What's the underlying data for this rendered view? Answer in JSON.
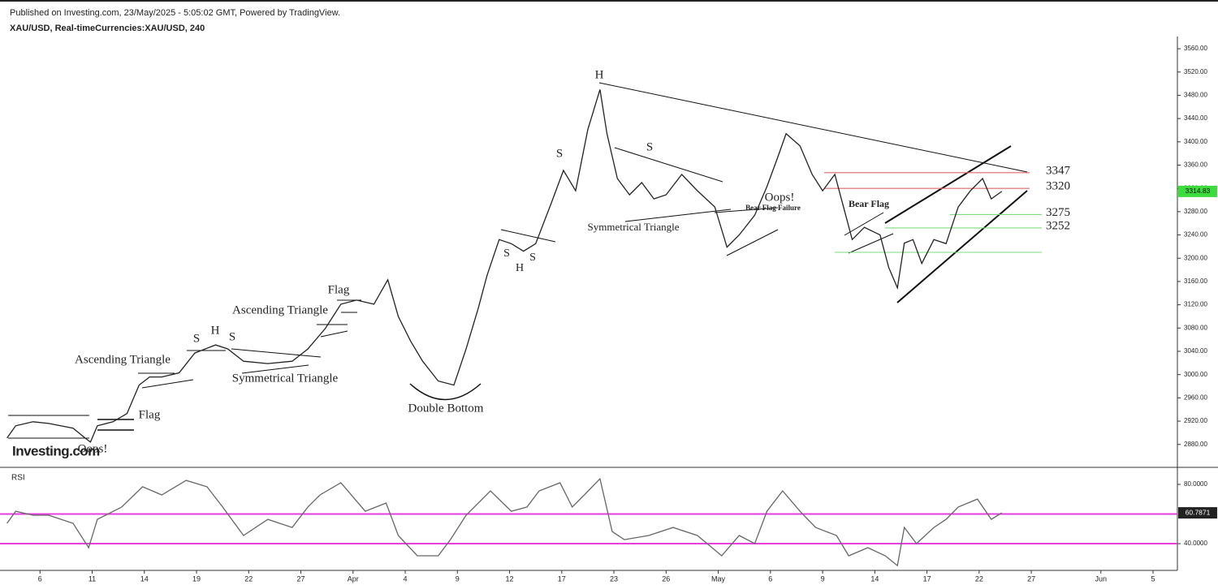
{
  "chart_data": [
    {
      "type": "line",
      "title": "Published on Investing.com, 23/May/2025 - 5:05:02 GMT, Powered by TradingView.",
      "subtitle": "XAU/USD, Real-timeCurrencies:XAU/USD, 240",
      "watermark": "Investing.com",
      "color": "#222222",
      "x": [
        -1.9,
        -1.4,
        -0.4,
        0.5,
        1.9,
        2.6,
        2.9,
        3.3,
        4.2,
        5.0,
        5.7,
        6.3,
        7.0,
        8.0,
        8.9,
        10.1,
        10.8,
        11.7,
        13.1,
        14.5,
        15.4,
        16.4,
        17.3,
        18.2,
        19.2,
        20.0,
        20.6,
        21.3,
        22.0,
        22.9,
        23.8,
        24.5,
        25.2,
        25.7,
        26.4,
        27.1,
        27.8,
        28.5,
        29.4,
        30.1,
        30.8,
        31.5,
        32.2,
        32.6,
        33.2,
        33.9,
        34.6,
        35.3,
        36.0,
        36.9,
        37.8,
        38.8,
        39.5,
        40.2,
        41.1,
        41.8,
        42.4,
        42.9,
        43.7,
        44.4,
        45.0,
        45.7,
        46.2,
        46.7,
        47.4,
        48.3,
        48.8,
        49.3,
        49.7,
        50.2,
        50.7,
        51.4,
        52.1,
        52.8,
        53.5,
        54.2,
        54.7,
        55.3
      ],
      "values": [
        2891,
        2912,
        2919,
        2916,
        2908,
        2891,
        2884,
        2912,
        2919,
        2933,
        2982,
        2996,
        2996,
        3003,
        3037,
        3051,
        3044,
        3023,
        3019,
        3023,
        3044,
        3079,
        3121,
        3128,
        3121,
        3163,
        3100,
        3058,
        3023,
        2989,
        2982,
        3044,
        3114,
        3170,
        3232,
        3225,
        3212,
        3225,
        3295,
        3351,
        3316,
        3421,
        3490,
        3414,
        3337,
        3309,
        3330,
        3302,
        3309,
        3344,
        3316,
        3288,
        3219,
        3240,
        3274,
        3323,
        3372,
        3414,
        3393,
        3344,
        3316,
        3344,
        3288,
        3232,
        3253,
        3240,
        3184,
        3149,
        3226,
        3232,
        3191,
        3232,
        3225,
        3288,
        3316,
        3337,
        3302,
        3314.83
      ],
      "last_value": 3314.83,
      "xlim": [
        -2.3,
        65.4
      ],
      "ylim": [
        2842,
        3581
      ],
      "yticks": [
        {
          "value": 2880,
          "label": "2880.00"
        },
        {
          "value": 2920,
          "label": "2920.00"
        },
        {
          "value": 2960,
          "label": "2960.00"
        },
        {
          "value": 3000,
          "label": "3000.00"
        },
        {
          "value": 3040,
          "label": "3040.00"
        },
        {
          "value": 3080,
          "label": "3080.00"
        },
        {
          "value": 3120,
          "label": "3120.00"
        },
        {
          "value": 3160,
          "label": "3160.00"
        },
        {
          "value": 3200,
          "label": "3200.00"
        },
        {
          "value": 3240,
          "label": "3240.00"
        },
        {
          "value": 3280,
          "label": "3280.00"
        },
        {
          "value": 3320,
          "label": "3320.00"
        },
        {
          "value": 3360,
          "label": "3360.00"
        },
        {
          "value": 3400,
          "label": "3400.00"
        },
        {
          "value": 3440,
          "label": "3440.00"
        },
        {
          "value": 3480,
          "label": "3480.00"
        },
        {
          "value": 3520,
          "label": "3520.00"
        },
        {
          "value": 3560,
          "label": "3560.00"
        }
      ],
      "levels": [
        {
          "value": 3347,
          "label": "3347",
          "color": "#e06666"
        },
        {
          "value": 3320,
          "label": "3320",
          "color": "#e06666"
        },
        {
          "value": 3275,
          "label": "3275",
          "color": "#7ddc7d"
        },
        {
          "value": 3252,
          "label": "3252",
          "color": "#7ddc7d"
        }
      ],
      "annotations": [
        "H",
        "S",
        "S",
        "Symmetrical Triangle",
        "Oops!",
        "Bear Flag Failure",
        "Bear Flag",
        "S",
        "H",
        "S",
        "Flag",
        "Ascending Triangle",
        "S",
        "H",
        "S",
        "Symmetrical Triangle",
        "Ascending Triangle",
        "Flag",
        "Oops!",
        "Double Bottom"
      ]
    },
    {
      "type": "line",
      "title": "RSI",
      "color": "#666666",
      "x": [
        -1.9,
        -1.4,
        -0.4,
        0.5,
        1.9,
        2.8,
        3.3,
        4.7,
        5.9,
        7.0,
        8.4,
        9.6,
        10.5,
        11.7,
        13.1,
        14.5,
        15.4,
        16.1,
        17.3,
        18.7,
        19.9,
        20.6,
        21.7,
        22.9,
        23.6,
        24.5,
        25.9,
        27.1,
        28.0,
        28.7,
        29.9,
        30.6,
        31.3,
        32.2,
        32.9,
        33.6,
        35.0,
        36.4,
        37.8,
        39.2,
        40.2,
        41.1,
        41.8,
        42.7,
        43.7,
        44.6,
        45.8,
        46.5,
        47.6,
        48.6,
        49.3,
        49.7,
        50.4,
        51.4,
        52.1,
        52.8,
        53.9,
        54.7,
        55.3
      ],
      "values": [
        53.7,
        61.9,
        59.2,
        59.2,
        53.7,
        37.3,
        56.4,
        64.7,
        78.4,
        72.9,
        82.7,
        78.4,
        64.7,
        45.5,
        56.4,
        50.9,
        64.7,
        72.9,
        81.1,
        61.9,
        67.4,
        45.5,
        31.8,
        31.8,
        42.7,
        59.2,
        75.6,
        61.9,
        64.7,
        75.6,
        81.1,
        64.7,
        72.9,
        83.8,
        48.2,
        42.7,
        45.5,
        50.9,
        45.5,
        31.8,
        45.5,
        40.0,
        61.9,
        75.6,
        61.9,
        50.9,
        45.5,
        31.8,
        37.3,
        31.8,
        25.2,
        50.9,
        40.0,
        50.9,
        56.4,
        64.7,
        70.1,
        56.4,
        60.7871
      ],
      "last_value": 60.7871,
      "levels": [
        60,
        40
      ],
      "level_color": "#e83ee0",
      "xlim": [
        -2.3,
        65.4
      ],
      "ylim": [
        23.6,
        90.4
      ],
      "yticks": [
        {
          "value": 40,
          "label": "40.0000"
        },
        {
          "value": 80,
          "label": "80.0000"
        }
      ],
      "xticks": [
        {
          "value": 0,
          "label": "6"
        },
        {
          "value": 3,
          "label": "11"
        },
        {
          "value": 6,
          "label": "14"
        },
        {
          "value": 9,
          "label": "19"
        },
        {
          "value": 12,
          "label": "22"
        },
        {
          "value": 15,
          "label": "27"
        },
        {
          "value": 18,
          "label": "Apr"
        },
        {
          "value": 21,
          "label": "4"
        },
        {
          "value": 24,
          "label": "9"
        },
        {
          "value": 27,
          "label": "12"
        },
        {
          "value": 30,
          "label": "17"
        },
        {
          "value": 33,
          "label": "23"
        },
        {
          "value": 36,
          "label": "26"
        },
        {
          "value": 39,
          "label": "May"
        },
        {
          "value": 42,
          "label": "6"
        },
        {
          "value": 45,
          "label": "9"
        },
        {
          "value": 48,
          "label": "14"
        },
        {
          "value": 51,
          "label": "17"
        },
        {
          "value": 54,
          "label": "22"
        },
        {
          "value": 57,
          "label": "27"
        },
        {
          "value": 61,
          "label": "Jun"
        },
        {
          "value": 64,
          "label": "5"
        }
      ]
    }
  ]
}
